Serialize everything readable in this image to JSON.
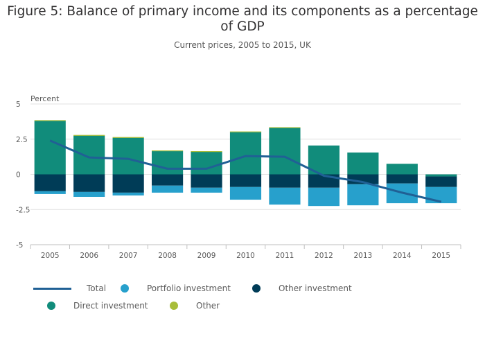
{
  "title_line1": "Figure 5: Balance of primary income and its components as a percentage",
  "title_line2": "of GDP",
  "subtitle": "Current prices, 2005 to 2015, UK",
  "colors": {
    "direct": "#118c7b",
    "other_investment": "#003c57",
    "portfolio": "#27a0cc",
    "other": "#a8bd3a",
    "total": "#206095",
    "grid": "#e0e0e0",
    "axis": "#bfbfbf"
  },
  "chart_data": {
    "type": "bar",
    "stacked": true,
    "ylabel": "Percent",
    "ylim": [
      -5,
      5
    ],
    "yticks": [
      5,
      2.5,
      0,
      -2.5,
      -5
    ],
    "ytick_labels": [
      "5",
      "2.5",
      "0",
      "-2.5",
      "-5"
    ],
    "categories": [
      "2005",
      "2006",
      "2007",
      "2008",
      "2009",
      "2010",
      "2011",
      "2012",
      "2013",
      "2014",
      "2015"
    ],
    "series": [
      {
        "name": "Direct investment",
        "type": "bar",
        "color": "#118c7b",
        "values": [
          3.8,
          2.75,
          2.6,
          1.65,
          1.6,
          3.0,
          3.3,
          2.05,
          1.55,
          0.75,
          -0.15
        ]
      },
      {
        "name": "Other",
        "type": "bar",
        "color": "#a8bd3a",
        "values": [
          0.05,
          0.05,
          0.05,
          0.05,
          0.05,
          0.05,
          0.05,
          0.0,
          0.0,
          0.0,
          0.0
        ]
      },
      {
        "name": "Other investment",
        "type": "bar",
        "color": "#003c57",
        "values": [
          -1.2,
          -1.25,
          -1.3,
          -0.8,
          -0.95,
          -0.9,
          -0.95,
          -0.95,
          -0.7,
          -0.65,
          -0.75
        ]
      },
      {
        "name": "Portfolio investment",
        "type": "bar",
        "color": "#27a0cc",
        "values": [
          -0.2,
          -0.35,
          -0.2,
          -0.5,
          -0.35,
          -0.9,
          -1.2,
          -1.3,
          -1.5,
          -1.4,
          -1.15
        ]
      },
      {
        "name": "Total",
        "type": "line",
        "color": "#206095",
        "values": [
          2.4,
          1.2,
          1.1,
          0.4,
          0.4,
          1.3,
          1.25,
          -0.1,
          -0.55,
          -1.3,
          -1.95
        ]
      }
    ],
    "grid": true,
    "legend_position": "bottom"
  },
  "legend": [
    {
      "label": "Total",
      "kind": "line",
      "color": "#206095"
    },
    {
      "label": "Portfolio investment",
      "kind": "dot",
      "color": "#27a0cc"
    },
    {
      "label": "Other investment",
      "kind": "dot",
      "color": "#003c57"
    },
    {
      "label": "Direct investment",
      "kind": "dot",
      "color": "#118c7b"
    },
    {
      "label": "Other",
      "kind": "dot",
      "color": "#a8bd3a"
    }
  ]
}
